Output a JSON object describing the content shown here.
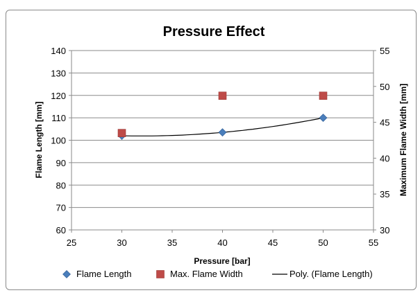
{
  "chart_data": {
    "type": "scatter",
    "title": "Pressure Effect",
    "xlabel": "Pressure [bar]",
    "ylabel": "Flame Length [mm]",
    "y2label": "Maximum Flame Width [mm]",
    "xlim": [
      25,
      55
    ],
    "ylim": [
      60,
      140
    ],
    "y2lim": [
      30,
      55
    ],
    "xticks": [
      "25",
      "30",
      "35",
      "40",
      "45",
      "50",
      "55"
    ],
    "yticks": [
      "60",
      "70",
      "80",
      "90",
      "100",
      "110",
      "120",
      "130",
      "140"
    ],
    "y2ticks": [
      "30",
      "35",
      "40",
      "45",
      "50",
      "55"
    ],
    "grid": "horizontal",
    "legend_position": "bottom",
    "series": [
      {
        "name": "Flame Length",
        "axis": "left",
        "marker": "diamond",
        "color": "#4a7ebb",
        "x": [
          30,
          40,
          50
        ],
        "y": [
          102,
          103.5,
          110
        ]
      },
      {
        "name": "Max. Flame Width",
        "axis": "right",
        "marker": "square",
        "color": "#be4b48",
        "x": [
          30,
          40,
          50
        ],
        "y": [
          43.5,
          48.7,
          48.7
        ]
      },
      {
        "name": "Poly. (Flame Length)",
        "axis": "left",
        "type": "trendline",
        "color": "#000000",
        "x": [
          30,
          40,
          50
        ],
        "y": [
          102,
          103.5,
          110
        ]
      }
    ]
  }
}
